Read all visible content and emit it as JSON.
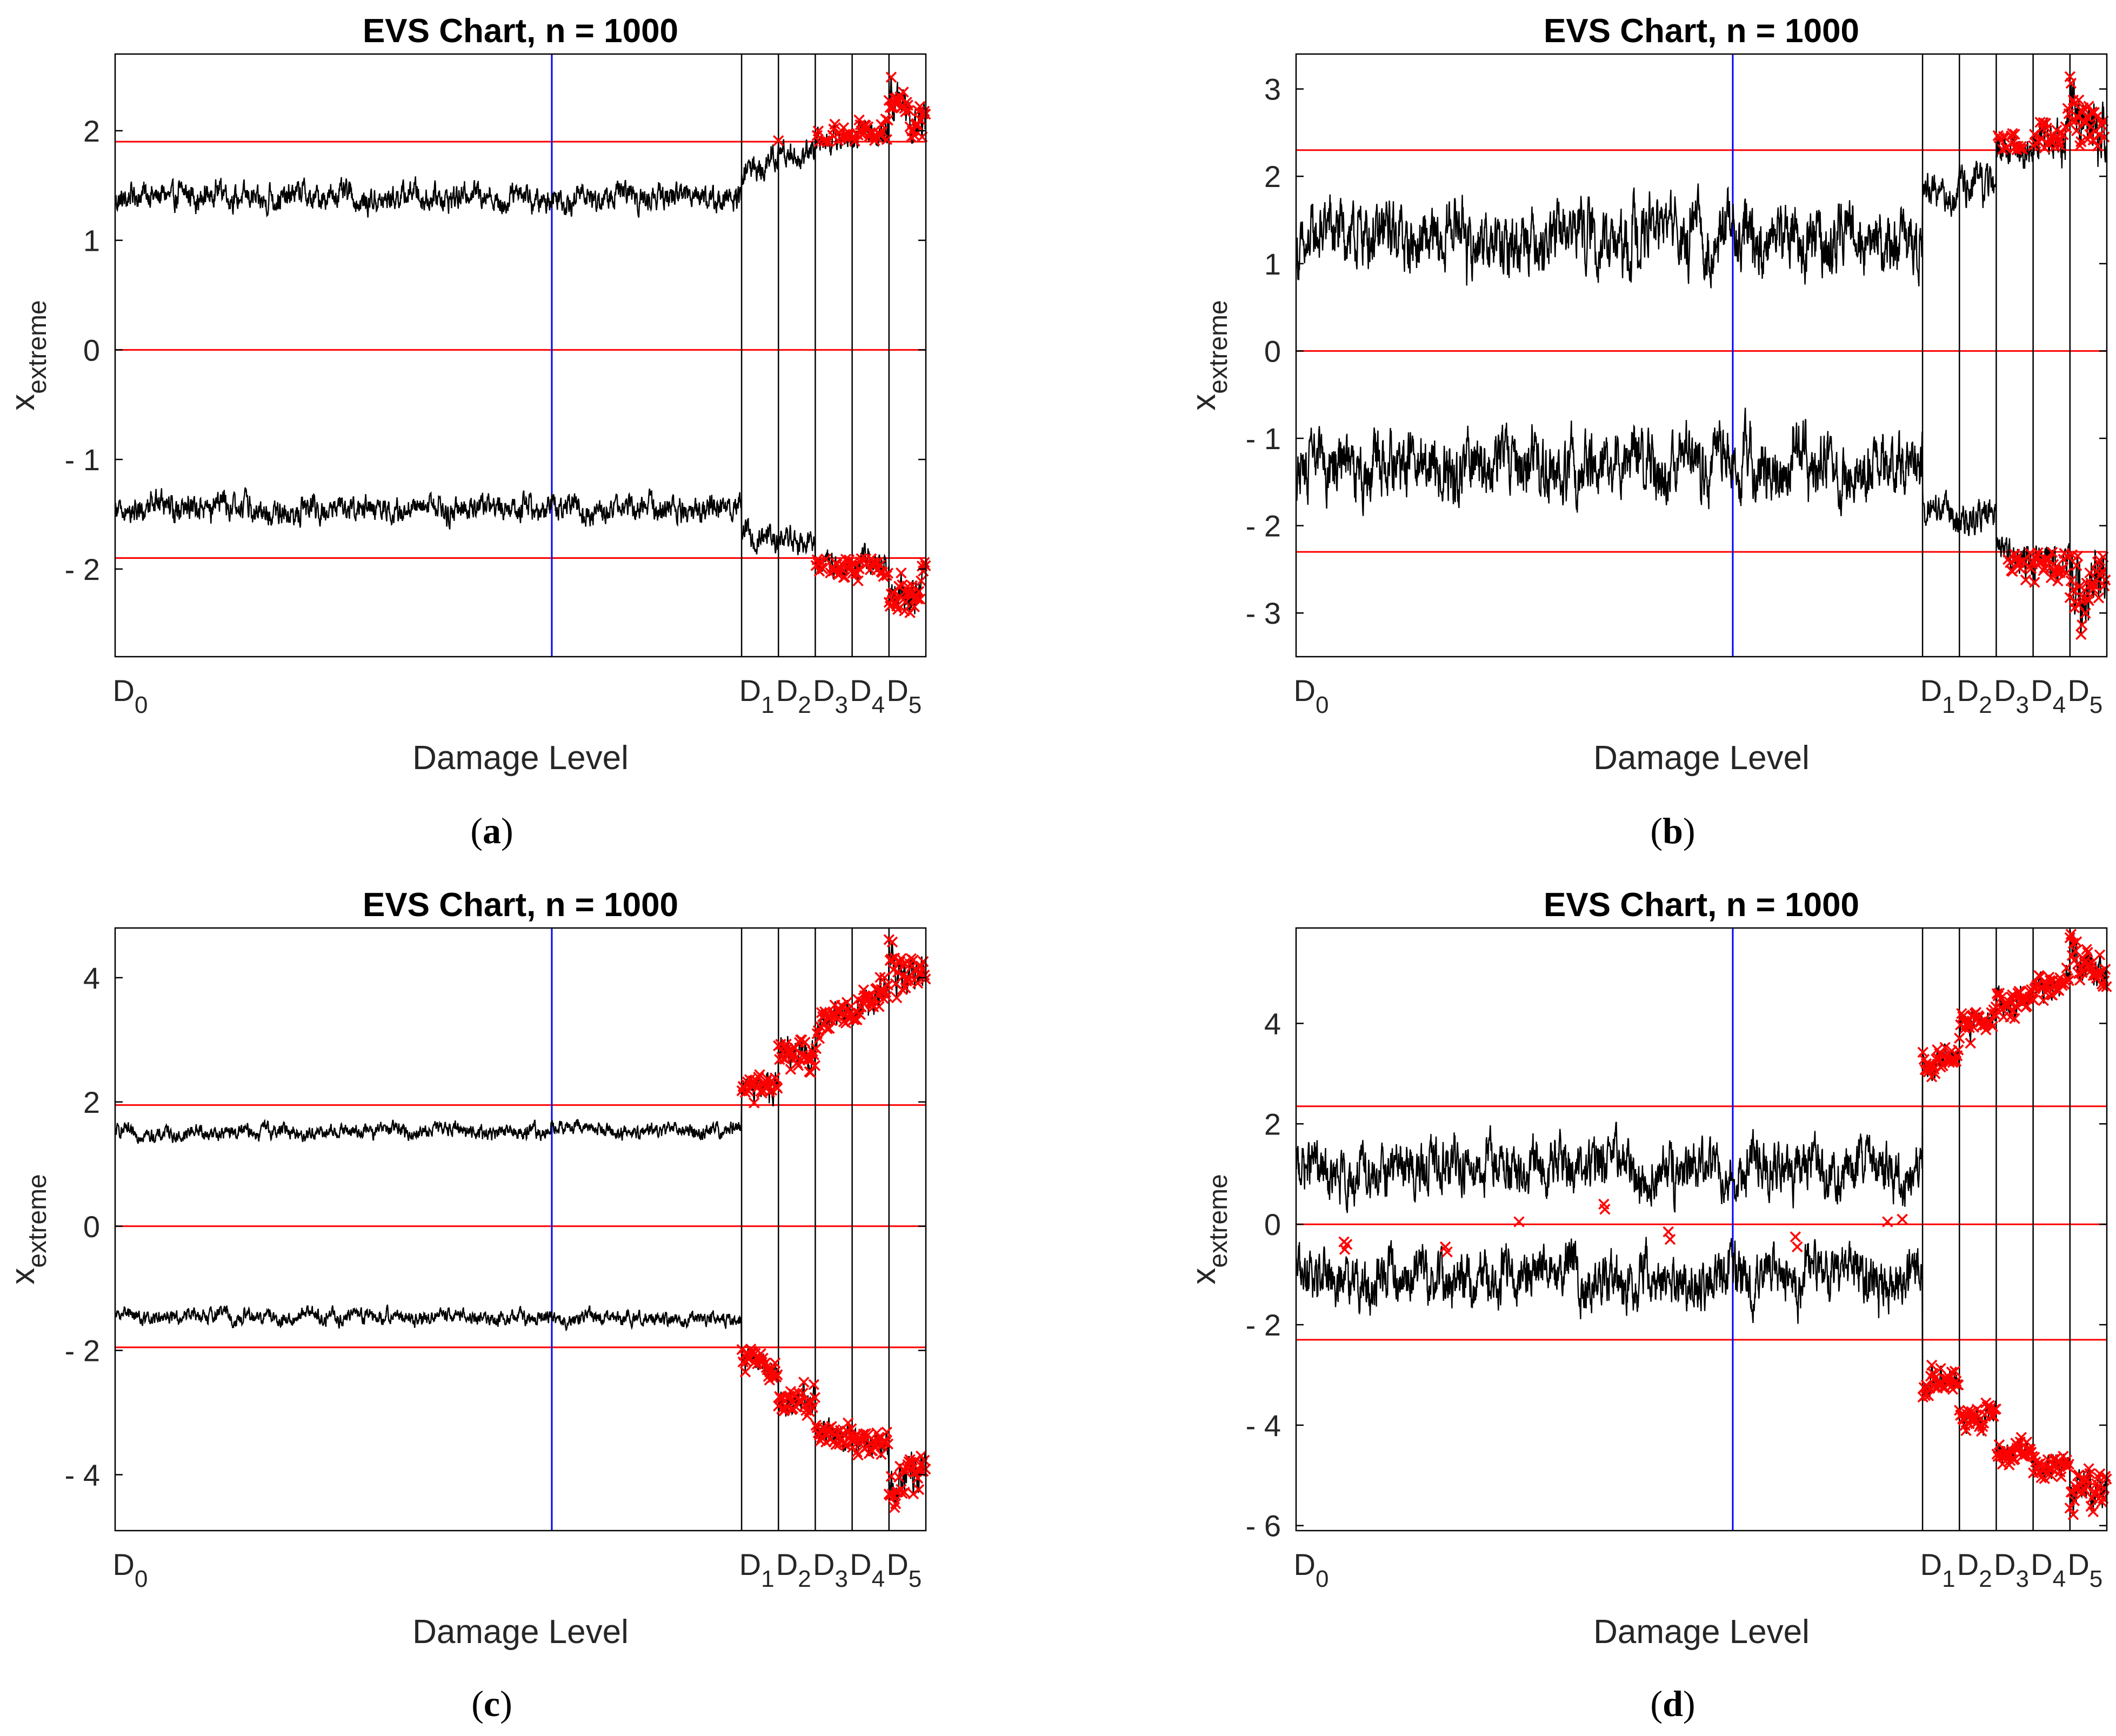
{
  "figure": {
    "panels": [
      {
        "id": "a",
        "caption_label": "a"
      },
      {
        "id": "b",
        "caption_label": "b"
      },
      {
        "id": "c",
        "caption_label": "c"
      },
      {
        "id": "d",
        "caption_label": "d"
      }
    ]
  },
  "chart_data": [
    {
      "type": "line",
      "title": "EVS Chart, n = 1000",
      "xlabel": "Damage Level",
      "ylabel_main": "x",
      "ylabel_sub": "extreme",
      "ylim": [
        -2.8,
        2.7
      ],
      "yticks": [
        -2,
        -1,
        0,
        1,
        2
      ],
      "ytick_labels": [
        "- 2",
        "- 1",
        "0",
        "1",
        "2"
      ],
      "xlim": [
        0,
        2200
      ],
      "damage_levels": [
        {
          "label": "D",
          "sub": "0",
          "x": 0
        },
        {
          "label": "D",
          "sub": "1",
          "x": 1700
        },
        {
          "label": "D",
          "sub": "2",
          "x": 1800
        },
        {
          "label": "D",
          "sub": "3",
          "x": 1900
        },
        {
          "label": "D",
          "sub": "4",
          "x": 2000
        },
        {
          "label": "D",
          "sub": "5",
          "x": 2100
        }
      ],
      "boundary_lines_x": [
        1700,
        1800,
        1900,
        2000,
        2100
      ],
      "midline_x": 1185,
      "control_limits": [
        1.9,
        0,
        -1.9
      ],
      "colors": {
        "series": "#000000",
        "limit": "#ff0000",
        "midline": "#0000ff",
        "outlier": "#ff0000"
      },
      "series": [
        {
          "segments": [
            {
              "x0": 0,
              "x1": 1700,
              "y0": 1.4,
              "y1": 1.4,
              "amp": 0.18
            },
            {
              "x0": 1700,
              "x1": 1800,
              "y0": 1.65,
              "y1": 1.75,
              "amp": 0.2
            },
            {
              "x0": 1800,
              "x1": 1900,
              "y0": 1.78,
              "y1": 1.75,
              "amp": 0.18
            },
            {
              "x0": 1900,
              "x1": 2000,
              "y0": 1.9,
              "y1": 1.95,
              "amp": 0.18
            },
            {
              "x0": 2000,
              "x1": 2100,
              "y0": 1.95,
              "y1": 2.0,
              "amp": 0.2
            },
            {
              "x0": 2100,
              "x1": 2200,
              "y0": 2.3,
              "y1": 2.05,
              "amp": 0.3
            }
          ]
        },
        {
          "segments": [
            {
              "x0": 0,
              "x1": 1700,
              "y0": -1.45,
              "y1": -1.45,
              "amp": 0.18
            },
            {
              "x0": 1700,
              "x1": 1800,
              "y0": -1.65,
              "y1": -1.7,
              "amp": 0.2
            },
            {
              "x0": 1800,
              "x1": 1900,
              "y0": -1.72,
              "y1": -1.75,
              "amp": 0.18
            },
            {
              "x0": 1900,
              "x1": 2000,
              "y0": -1.92,
              "y1": -1.95,
              "amp": 0.18
            },
            {
              "x0": 2000,
              "x1": 2100,
              "y0": -1.95,
              "y1": -2.0,
              "amp": 0.2
            },
            {
              "x0": 2100,
              "x1": 2200,
              "y0": -2.3,
              "y1": -2.05,
              "amp": 0.3
            }
          ]
        }
      ],
      "outlier_threshold": 1.9
    },
    {
      "type": "line",
      "title": "EVS Chart, n = 1000",
      "xlabel": "Damage Level",
      "ylabel_main": "x",
      "ylabel_sub": "extreme",
      "ylim": [
        -3.5,
        3.4
      ],
      "yticks": [
        -3,
        -2,
        -1,
        0,
        1,
        2,
        3
      ],
      "ytick_labels": [
        "- 3",
        "- 2",
        "- 1",
        "0",
        "1",
        "2",
        "3"
      ],
      "xlim": [
        0,
        2200
      ],
      "damage_levels": [
        {
          "label": "D",
          "sub": "0",
          "x": 0
        },
        {
          "label": "D",
          "sub": "1",
          "x": 1700
        },
        {
          "label": "D",
          "sub": "2",
          "x": 1800
        },
        {
          "label": "D",
          "sub": "3",
          "x": 1900
        },
        {
          "label": "D",
          "sub": "4",
          "x": 2000
        },
        {
          "label": "D",
          "sub": "5",
          "x": 2100
        }
      ],
      "boundary_lines_x": [
        1700,
        1800,
        1900,
        2000,
        2100
      ],
      "midline_x": 1185,
      "control_limits": [
        2.3,
        0,
        -2.3
      ],
      "colors": {
        "series": "#000000",
        "limit": "#ff0000",
        "midline": "#0000ff",
        "outlier": "#ff0000"
      },
      "series": [
        {
          "segments": [
            {
              "x0": 0,
              "x1": 1700,
              "y0": 1.3,
              "y1": 1.3,
              "amp": 0.55
            },
            {
              "x0": 1700,
              "x1": 1800,
              "y0": 1.8,
              "y1": 1.8,
              "amp": 0.3
            },
            {
              "x0": 1800,
              "x1": 1900,
              "y0": 1.9,
              "y1": 1.95,
              "amp": 0.35
            },
            {
              "x0": 1900,
              "x1": 2000,
              "y0": 2.3,
              "y1": 2.35,
              "amp": 0.3
            },
            {
              "x0": 2000,
              "x1": 2100,
              "y0": 2.35,
              "y1": 2.4,
              "amp": 0.35
            },
            {
              "x0": 2100,
              "x1": 2200,
              "y0": 2.8,
              "y1": 2.5,
              "amp": 0.5
            }
          ]
        },
        {
          "segments": [
            {
              "x0": 0,
              "x1": 1700,
              "y0": -1.3,
              "y1": -1.3,
              "amp": 0.55
            },
            {
              "x0": 1700,
              "x1": 1800,
              "y0": -1.85,
              "y1": -1.9,
              "amp": 0.3
            },
            {
              "x0": 1800,
              "x1": 1900,
              "y0": -1.9,
              "y1": -1.95,
              "amp": 0.35
            },
            {
              "x0": 1900,
              "x1": 2000,
              "y0": -2.3,
              "y1": -2.35,
              "amp": 0.3
            },
            {
              "x0": 2000,
              "x1": 2100,
              "y0": -2.35,
              "y1": -2.4,
              "amp": 0.35
            },
            {
              "x0": 2100,
              "x1": 2200,
              "y0": -2.8,
              "y1": -2.5,
              "amp": 0.5
            }
          ]
        }
      ],
      "outlier_threshold": 2.3
    },
    {
      "type": "line",
      "title": "EVS Chart, n = 1000",
      "xlabel": "Damage Level",
      "ylabel_main": "x",
      "ylabel_sub": "extreme",
      "ylim": [
        -4.9,
        4.8
      ],
      "yticks": [
        -4,
        -2,
        0,
        2,
        4
      ],
      "ytick_labels": [
        "- 4",
        "- 2",
        "0",
        "2",
        "4"
      ],
      "xlim": [
        0,
        2200
      ],
      "damage_levels": [
        {
          "label": "D",
          "sub": "0",
          "x": 0
        },
        {
          "label": "D",
          "sub": "1",
          "x": 1700
        },
        {
          "label": "D",
          "sub": "2",
          "x": 1800
        },
        {
          "label": "D",
          "sub": "3",
          "x": 1900
        },
        {
          "label": "D",
          "sub": "4",
          "x": 2000
        },
        {
          "label": "D",
          "sub": "5",
          "x": 2100
        }
      ],
      "boundary_lines_x": [
        1700,
        1800,
        1900,
        2000,
        2100
      ],
      "midline_x": 1185,
      "control_limits": [
        1.95,
        0,
        -1.95
      ],
      "colors": {
        "series": "#000000",
        "limit": "#ff0000",
        "midline": "#0000ff",
        "outlier": "#ff0000"
      },
      "series": [
        {
          "segments": [
            {
              "x0": 0,
              "x1": 1700,
              "y0": 1.5,
              "y1": 1.55,
              "amp": 0.18
            },
            {
              "x0": 1700,
              "x1": 1800,
              "y0": 2.1,
              "y1": 2.3,
              "amp": 0.35
            },
            {
              "x0": 1800,
              "x1": 1900,
              "y0": 2.8,
              "y1": 2.8,
              "amp": 0.4
            },
            {
              "x0": 1900,
              "x1": 2000,
              "y0": 3.2,
              "y1": 3.5,
              "amp": 0.35
            },
            {
              "x0": 2000,
              "x1": 2100,
              "y0": 3.5,
              "y1": 3.8,
              "amp": 0.35
            },
            {
              "x0": 2100,
              "x1": 2200,
              "y0": 4.3,
              "y1": 3.8,
              "amp": 0.5
            }
          ]
        },
        {
          "segments": [
            {
              "x0": 0,
              "x1": 1700,
              "y0": -1.45,
              "y1": -1.5,
              "amp": 0.18
            },
            {
              "x0": 1700,
              "x1": 1800,
              "y0": -2.2,
              "y1": -2.2,
              "amp": 0.35
            },
            {
              "x0": 1800,
              "x1": 1900,
              "y0": -2.7,
              "y1": -2.8,
              "amp": 0.4
            },
            {
              "x0": 1900,
              "x1": 2000,
              "y0": -3.2,
              "y1": -3.5,
              "amp": 0.35
            },
            {
              "x0": 2000,
              "x1": 2100,
              "y0": -3.5,
              "y1": -3.6,
              "amp": 0.35
            },
            {
              "x0": 2100,
              "x1": 2200,
              "y0": -4.3,
              "y1": -3.8,
              "amp": 0.5
            }
          ]
        }
      ],
      "outlier_threshold": 1.95
    },
    {
      "type": "line",
      "title": "EVS Chart, n = 1000",
      "xlabel": "Damage Level",
      "ylabel_main": "x",
      "ylabel_sub": "extreme",
      "ylim": [
        -6.1,
        5.9
      ],
      "yticks": [
        -6,
        -4,
        -2,
        0,
        2,
        4
      ],
      "ytick_labels": [
        "- 6",
        "- 4",
        "- 2",
        "0",
        "2",
        "4"
      ],
      "xlim": [
        0,
        2200
      ],
      "damage_levels": [
        {
          "label": "D",
          "sub": "0",
          "x": 0
        },
        {
          "label": "D",
          "sub": "1",
          "x": 1700
        },
        {
          "label": "D",
          "sub": "2",
          "x": 1800
        },
        {
          "label": "D",
          "sub": "3",
          "x": 1900
        },
        {
          "label": "D",
          "sub": "4",
          "x": 2000
        },
        {
          "label": "D",
          "sub": "5",
          "x": 2100
        }
      ],
      "boundary_lines_x": [
        1700,
        1800,
        1900,
        2000,
        2100
      ],
      "midline_x": 1185,
      "control_limits": [
        2.35,
        0,
        -2.3
      ],
      "colors": {
        "series": "#000000",
        "limit": "#ff0000",
        "midline": "#0000ff",
        "outlier": "#ff0000"
      },
      "series": [
        {
          "segments": [
            {
              "x0": 0,
              "x1": 1700,
              "y0": 1.1,
              "y1": 1.1,
              "amp": 0.8
            },
            {
              "x0": 1700,
              "x1": 1800,
              "y0": 3.2,
              "y1": 3.3,
              "amp": 0.4
            },
            {
              "x0": 1800,
              "x1": 1900,
              "y0": 3.9,
              "y1": 4.0,
              "amp": 0.4
            },
            {
              "x0": 1900,
              "x1": 2000,
              "y0": 4.4,
              "y1": 4.6,
              "amp": 0.35
            },
            {
              "x0": 2000,
              "x1": 2100,
              "y0": 4.7,
              "y1": 4.9,
              "amp": 0.4
            },
            {
              "x0": 2100,
              "x1": 2200,
              "y0": 5.5,
              "y1": 5.0,
              "amp": 0.6
            }
          ]
        },
        {
          "segments": [
            {
              "x0": 0,
              "x1": 1700,
              "y0": -1.1,
              "y1": -1.1,
              "amp": 0.8
            },
            {
              "x0": 1700,
              "x1": 1800,
              "y0": -3.2,
              "y1": -3.1,
              "amp": 0.4
            },
            {
              "x0": 1800,
              "x1": 1900,
              "y0": -3.9,
              "y1": -3.9,
              "amp": 0.4
            },
            {
              "x0": 1900,
              "x1": 2000,
              "y0": -4.4,
              "y1": -4.6,
              "amp": 0.35
            },
            {
              "x0": 2000,
              "x1": 2100,
              "y0": -4.7,
              "y1": -4.8,
              "amp": 0.4
            },
            {
              "x0": 2100,
              "x1": 2200,
              "y0": -5.5,
              "y1": -5.1,
              "amp": 0.6
            }
          ]
        }
      ],
      "outlier_threshold": 2.3,
      "extra_outliers": [
        {
          "x": 130,
          "y": -0.35
        },
        {
          "x": 132,
          "y": -0.5
        },
        {
          "x": 138,
          "y": -0.4
        },
        {
          "x": 405,
          "y": -0.45
        },
        {
          "x": 410,
          "y": -0.55
        },
        {
          "x": 605,
          "y": 0.05
        },
        {
          "x": 835,
          "y": 0.4
        },
        {
          "x": 838,
          "y": 0.3
        },
        {
          "x": 1010,
          "y": -0.15
        },
        {
          "x": 1015,
          "y": -0.3
        },
        {
          "x": 1355,
          "y": -0.25
        },
        {
          "x": 1360,
          "y": -0.45
        },
        {
          "x": 1605,
          "y": 0.05
        },
        {
          "x": 1645,
          "y": 0.1
        }
      ]
    }
  ]
}
